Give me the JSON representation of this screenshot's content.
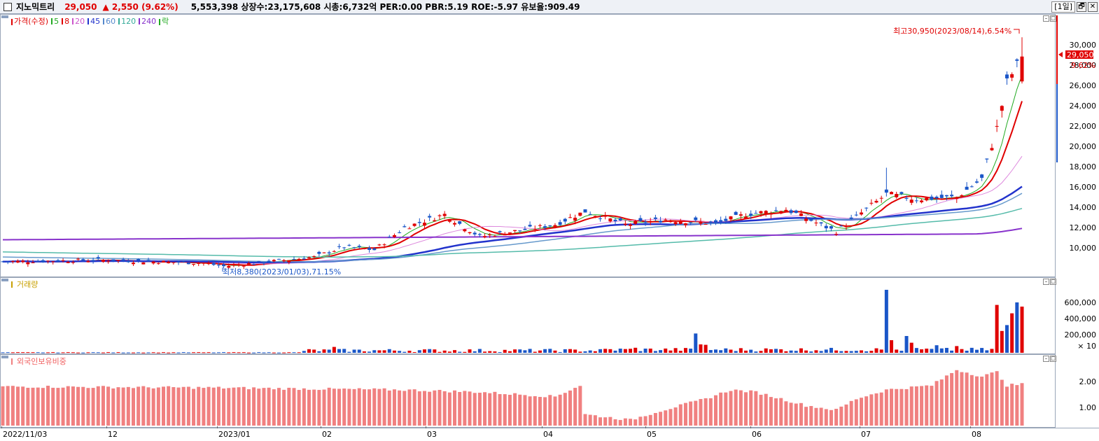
{
  "header": {
    "stock_name": "지노믹트리",
    "price": "29,050",
    "change": "▲ 2,550",
    "change_pct": "(9.62%)",
    "info": "5,553,398  상장수:23,175,608  시총:6,732억  PER:0.00  PBR:5.19  ROE:-5.97  유보율:909.49",
    "period_label": "[1일]",
    "restore_btn": "🗗",
    "close_btn": "✕"
  },
  "price_panel": {
    "legend": [
      {
        "label": "가격(수정)",
        "color": "#e00000"
      },
      {
        "label": "5",
        "color": "#22aa22"
      },
      {
        "label": "8",
        "color": "#e00000"
      },
      {
        "label": "20",
        "color": "#cc55cc"
      },
      {
        "label": "45",
        "color": "#2233cc"
      },
      {
        "label": "60",
        "color": "#5588cc"
      },
      {
        "label": "120",
        "color": "#33aa99"
      },
      {
        "label": "240",
        "color": "#8833cc"
      },
      {
        "label": "락",
        "color": "#22aa22"
      }
    ],
    "y_ticks": [
      "30,000",
      "28,000",
      "26,000",
      "24,000",
      "22,000",
      "20,000",
      "18,000",
      "16,000",
      "14,000",
      "12,000",
      "10,000"
    ],
    "high_annotation": "최고30,950(2023/08/14),6.54%",
    "low_annotation": "최저8,380(2023/01/03),71.15%",
    "current_price_tag": "29,050",
    "current_pct_tag": "9.62%"
  },
  "volume_panel": {
    "title": "거래량",
    "y_ticks": [
      "600,000",
      "400,000",
      "200,000"
    ],
    "multiplier": "× 10"
  },
  "foreign_panel": {
    "title": "외국인보유비중",
    "y_ticks": [
      "2.00",
      "1.00"
    ]
  },
  "x_axis": [
    "2022/11/03",
    "12",
    "2023/01",
    "02",
    "03",
    "04",
    "05",
    "06",
    "07",
    "08"
  ],
  "chart_data": [
    {
      "type": "candlestick",
      "title": "가격(수정)",
      "ylim": [
        7500,
        31500
      ],
      "series_close_key_points": [
        {
          "x": "2022/11/03",
          "close": 8850
        },
        {
          "x": "2022/12",
          "close": 9000
        },
        {
          "x": "2023/01/03",
          "close": 8380
        },
        {
          "x": "2023/02",
          "close": 9300
        },
        {
          "x": "2023/02 mid",
          "close": 10300
        },
        {
          "x": "2023/03",
          "close": 12200
        },
        {
          "x": "2023/03 mid",
          "close": 13500
        },
        {
          "x": "2023/04",
          "close": 11300
        },
        {
          "x": "2023/04 mid",
          "close": 13800
        },
        {
          "x": "2023/05",
          "close": 12500
        },
        {
          "x": "2023/06",
          "close": 13500
        },
        {
          "x": "2023/06 end",
          "close": 11800
        },
        {
          "x": "2023/07",
          "close": 15500
        },
        {
          "x": "2023/07 end",
          "close": 15000
        },
        {
          "x": "2023/08",
          "close": 15200
        },
        {
          "x": "2023/08/14",
          "close": 29050
        }
      ],
      "high": 30950,
      "low": 8380
    },
    {
      "type": "bar",
      "title": "거래량",
      "ylim": [
        0,
        750000
      ],
      "peaks": [
        {
          "x": "2023/02 mid",
          "value": 70000
        },
        {
          "x": "2023/04 mid",
          "value": 230000
        },
        {
          "x": "2023/06 end",
          "value": 750000
        },
        {
          "x": "2023/07 end",
          "value": 200000
        },
        {
          "x": "2023/08",
          "value": 570000
        },
        {
          "x": "2023/08/14",
          "value": 550000
        }
      ]
    },
    {
      "type": "bar",
      "title": "외국인보유비중",
      "ylim": [
        0,
        2.6
      ],
      "key_points": [
        {
          "x": "2022/11/03",
          "value": 1.75
        },
        {
          "x": "2023/03",
          "value": 1.6
        },
        {
          "x": "2023/04",
          "value": 1.4
        },
        {
          "x": "2023/05",
          "value": 0.25
        },
        {
          "x": "2023/06",
          "value": 1.6
        },
        {
          "x": "2023/07",
          "value": 0.9
        },
        {
          "x": "2023/08",
          "value": 2.6
        },
        {
          "x": "2023/08/14",
          "value": 1.85
        }
      ]
    }
  ]
}
